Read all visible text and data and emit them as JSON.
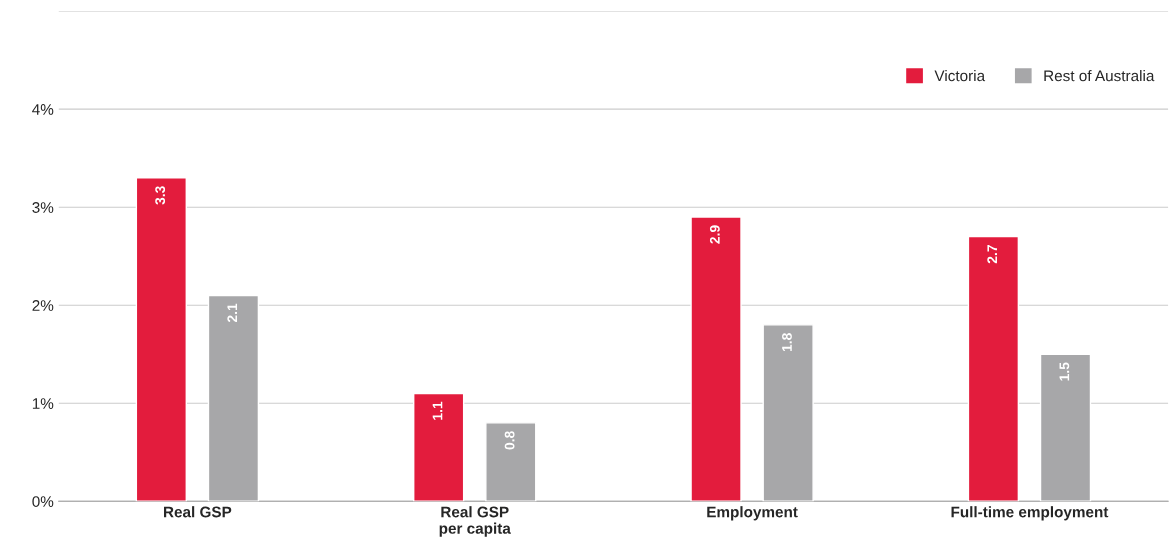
{
  "chart_data": {
    "type": "bar",
    "categories": [
      "Real GSP",
      "Real GSP\nper capita",
      "Employment",
      "Full-time employment"
    ],
    "series": [
      {
        "name": "Victoria",
        "color": "#e31c3d",
        "values": [
          3.3,
          1.1,
          2.9,
          2.7
        ]
      },
      {
        "name": "Rest of Australia",
        "color": "#a7a7a9",
        "values": [
          2.1,
          0.8,
          1.8,
          1.5
        ]
      }
    ],
    "ylim": [
      0,
      5
    ],
    "yticks": [
      {
        "value": 0,
        "label": "0%"
      },
      {
        "value": 1,
        "label": "1%"
      },
      {
        "value": 2,
        "label": "2%"
      },
      {
        "value": 3,
        "label": "3%"
      },
      {
        "value": 4,
        "label": "4%"
      },
      {
        "value": 5,
        "label": null
      }
    ],
    "grid": "y",
    "legend": "top right",
    "data_labels": true
  }
}
